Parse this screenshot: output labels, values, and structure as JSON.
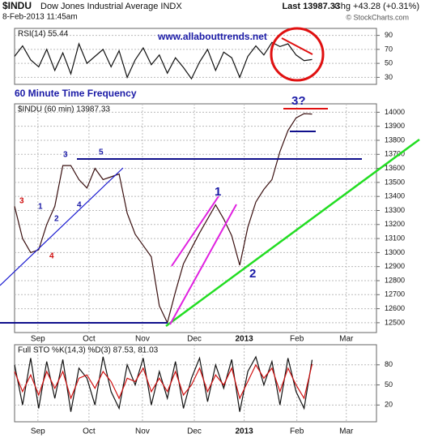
{
  "page_header": {
    "symbol": "$INDU",
    "name": "Dow Jones Industrial Average INDX",
    "date": "8-Feb-2013 11:45am",
    "last": "Last 13987.33",
    "chg": "Chg +43.28 (+0.31%)",
    "source": "© StockCharts.com"
  },
  "chart_data": [
    {
      "type": "line",
      "title": "RSI(14) 55.44",
      "xlim": [
        0,
        90
      ],
      "ylim": [
        20,
        100
      ],
      "yticks": [
        90,
        70,
        50,
        30
      ],
      "grid": true,
      "x": [
        0,
        2,
        4,
        6,
        8,
        10,
        12,
        14,
        16,
        18,
        20,
        22,
        24,
        26,
        28,
        30,
        32,
        34,
        36,
        38,
        40,
        42,
        44,
        46,
        48,
        50,
        52,
        54,
        56,
        58,
        60,
        62,
        64,
        66,
        68,
        70,
        72,
        74
      ],
      "series": [
        {
          "color": "#111",
          "values": [
            60,
            75,
            55,
            45,
            70,
            40,
            65,
            35,
            78,
            50,
            60,
            70,
            45,
            68,
            30,
            55,
            72,
            48,
            62,
            36,
            58,
            44,
            28,
            52,
            70,
            40,
            66,
            58,
            30,
            60,
            75,
            62,
            80,
            74,
            78,
            62,
            54,
            55.44
          ]
        }
      ],
      "annotations": [
        {
          "text": "www.allabouttrends.net",
          "color": "#1a1aa6"
        }
      ]
    },
    {
      "type": "line",
      "title": "$INDU (60 min) 13987.33",
      "xlim": [
        0,
        90
      ],
      "ylim": [
        12430,
        14060
      ],
      "yticks": [
        12500,
        12600,
        12700,
        12800,
        12900,
        13000,
        13100,
        13200,
        13300,
        13400,
        13500,
        13600,
        13700,
        13800,
        13900,
        14000
      ],
      "grid": true,
      "xticks": [
        {
          "value": 5.8,
          "label": "Sep"
        },
        {
          "value": 18.5,
          "label": "Oct"
        },
        {
          "value": 31.8,
          "label": "Nov"
        },
        {
          "value": 44.7,
          "label": "Dec"
        },
        {
          "value": 57.1,
          "label": "2013"
        },
        {
          "value": 70.2,
          "label": "Feb"
        },
        {
          "value": 82.5,
          "label": "Mar"
        }
      ],
      "x": [
        0,
        2,
        4,
        6,
        8,
        10,
        12,
        14,
        16,
        18,
        20,
        22,
        24,
        26,
        28,
        30,
        32,
        34,
        36,
        38,
        40,
        42,
        44,
        46,
        48,
        50,
        52,
        54,
        56,
        58,
        60,
        62,
        64,
        66,
        68,
        70,
        72,
        74
      ],
      "series": [
        {
          "color": "#3a1010",
          "values": [
            13330,
            13100,
            13000,
            13020,
            13200,
            13330,
            13620,
            13620,
            13520,
            13460,
            13600,
            13520,
            13540,
            13560,
            13280,
            13130,
            13050,
            12970,
            12620,
            12500,
            12720,
            12920,
            13030,
            13140,
            13240,
            13340,
            13240,
            13120,
            12910,
            13180,
            13360,
            13450,
            13520,
            13720,
            13870,
            13960,
            13990,
            13987
          ]
        }
      ],
      "annotations": [
        {
          "text": "60 Minute Time Frequency",
          "color": "#1a1aa6"
        },
        {
          "text": "3",
          "color": "#d01010"
        },
        {
          "text": "4",
          "color": "#d01010"
        },
        {
          "text": "1",
          "color": "#1a1aa6"
        },
        {
          "text": "2",
          "color": "#1a1aa6"
        },
        {
          "text": "3",
          "color": "#1a1aa6"
        },
        {
          "text": "4",
          "color": "#1a1aa6"
        },
        {
          "text": "5",
          "color": "#1a1aa6"
        },
        {
          "text": "1",
          "color": "#1a1aa6"
        },
        {
          "text": "2",
          "color": "#1a1aa6"
        },
        {
          "text": "3?",
          "color": "#1a1aa6"
        }
      ]
    },
    {
      "type": "line",
      "title": "Full STO %K(14,3) %D(3) 87.53, 81.03",
      "xlim": [
        0,
        90
      ],
      "ylim": [
        -5,
        110
      ],
      "yticks": [
        80,
        50,
        20
      ],
      "grid": true,
      "xticks": [
        {
          "value": 5.8,
          "label": "Sep"
        },
        {
          "value": 18.5,
          "label": "Oct"
        },
        {
          "value": 31.8,
          "label": "Nov"
        },
        {
          "value": 44.7,
          "label": "Dec"
        },
        {
          "value": 57.1,
          "label": "2013"
        },
        {
          "value": 70.2,
          "label": "Feb"
        },
        {
          "value": 82.5,
          "label": "Mar"
        }
      ],
      "x": [
        0,
        2,
        4,
        6,
        8,
        10,
        12,
        14,
        16,
        18,
        20,
        22,
        24,
        26,
        28,
        30,
        32,
        34,
        36,
        38,
        40,
        42,
        44,
        46,
        48,
        50,
        52,
        54,
        56,
        58,
        60,
        62,
        64,
        66,
        68,
        70,
        72,
        74
      ],
      "series": [
        {
          "color": "#111",
          "values": [
            80,
            20,
            90,
            15,
            85,
            30,
            88,
            10,
            75,
            60,
            20,
            92,
            40,
            15,
            80,
            50,
            90,
            20,
            70,
            30,
            85,
            15,
            60,
            90,
            25,
            80,
            45,
            88,
            10,
            70,
            92,
            50,
            85,
            20,
            90,
            40,
            15,
            87.53
          ]
        },
        {
          "color": "#d01010",
          "values": [
            70,
            40,
            65,
            35,
            70,
            45,
            70,
            30,
            60,
            65,
            45,
            70,
            55,
            30,
            60,
            55,
            75,
            40,
            60,
            40,
            70,
            35,
            50,
            75,
            40,
            65,
            50,
            75,
            30,
            55,
            80,
            60,
            75,
            40,
            75,
            50,
            30,
            81.03
          ]
        }
      ]
    }
  ]
}
